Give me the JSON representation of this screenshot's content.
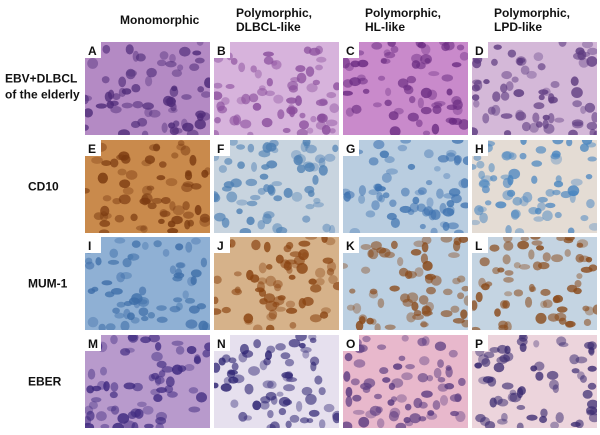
{
  "columns": [
    {
      "lines": [
        "Monomorphic"
      ]
    },
    {
      "lines": [
        "Polymorphic,",
        "DLBCL-like"
      ]
    },
    {
      "lines": [
        "Polymorphic,",
        "HL-like"
      ]
    },
    {
      "lines": [
        "Polymorphic,",
        "LPD-like"
      ]
    }
  ],
  "rows": [
    {
      "lines": [
        "EBV+DLBCL",
        "of the elderly"
      ],
      "panels": [
        "A",
        "B",
        "C",
        "D"
      ]
    },
    {
      "lines": [
        "CD10"
      ],
      "panels": [
        "E",
        "F",
        "G",
        "H"
      ]
    },
    {
      "lines": [
        "MUM-1"
      ],
      "panels": [
        "I",
        "J",
        "K",
        "L"
      ]
    },
    {
      "lines": [
        "EBER"
      ],
      "panels": [
        "M",
        "N",
        "O",
        "P"
      ]
    }
  ]
}
